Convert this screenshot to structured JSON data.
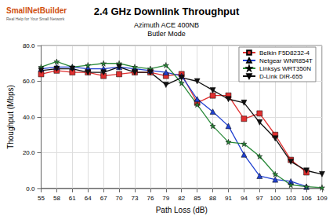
{
  "chart_data": {
    "type": "line",
    "title": "2.4 GHz Downlink Throughput",
    "subtitle": [
      "Azimuth ACE 400NB",
      "Butler Mode"
    ],
    "x_label": "Path Loss (dB)",
    "y_label": "Thoughput (Mbps)",
    "annotations": [
      "SmallNetBuilder",
      "Real Help for Your Small Network"
    ],
    "x": [
      55,
      58,
      61,
      64,
      67,
      70,
      73,
      76,
      79,
      82,
      85,
      88,
      91,
      94,
      97,
      100,
      103,
      106,
      109
    ],
    "xlim": [
      55,
      109
    ],
    "xticks": [
      55,
      58,
      61,
      64,
      67,
      70,
      73,
      76,
      79,
      82,
      85,
      88,
      91,
      94,
      97,
      100,
      103,
      106,
      109
    ],
    "ylim": [
      0,
      80
    ],
    "yticks": [
      {
        "value": 0,
        "label": "0.0"
      },
      {
        "value": 20,
        "label": "20.0"
      },
      {
        "value": 40,
        "label": "40.0"
      },
      {
        "value": 60,
        "label": "60.0"
      },
      {
        "value": 80,
        "label": "80.0"
      }
    ],
    "grid": true,
    "legend": "upper right",
    "series": [
      {
        "name": "Belkin F5D8232-4",
        "color": "#e03030",
        "marker": "square",
        "values": [
          64,
          66,
          65,
          65,
          63,
          64,
          65,
          65,
          63,
          64,
          48,
          52,
          52,
          39,
          42,
          30,
          16,
          9,
          null
        ]
      },
      {
        "name": "Netgear WNR854T",
        "color": "#2040d0",
        "marker": "triangle",
        "values": [
          67,
          68,
          68,
          67,
          67,
          68,
          67,
          66,
          65,
          63,
          50,
          43,
          35,
          19,
          7,
          5,
          4,
          1,
          null
        ]
      },
      {
        "name": "Linksys WRT350N",
        "color": "#2a8a3a",
        "marker": "star",
        "values": [
          68,
          71,
          68,
          69,
          70,
          70,
          68,
          67,
          69,
          59,
          47,
          35,
          26,
          25,
          18,
          8,
          2,
          1,
          0.5
        ]
      },
      {
        "name": "D-Link DIR-655",
        "color": "#111111",
        "marker": "triangle-down",
        "values": [
          66,
          67,
          67,
          65,
          65,
          68,
          65,
          65,
          58,
          62,
          60,
          55,
          50,
          48,
          37,
          28,
          15,
          10,
          8
        ]
      }
    ]
  }
}
